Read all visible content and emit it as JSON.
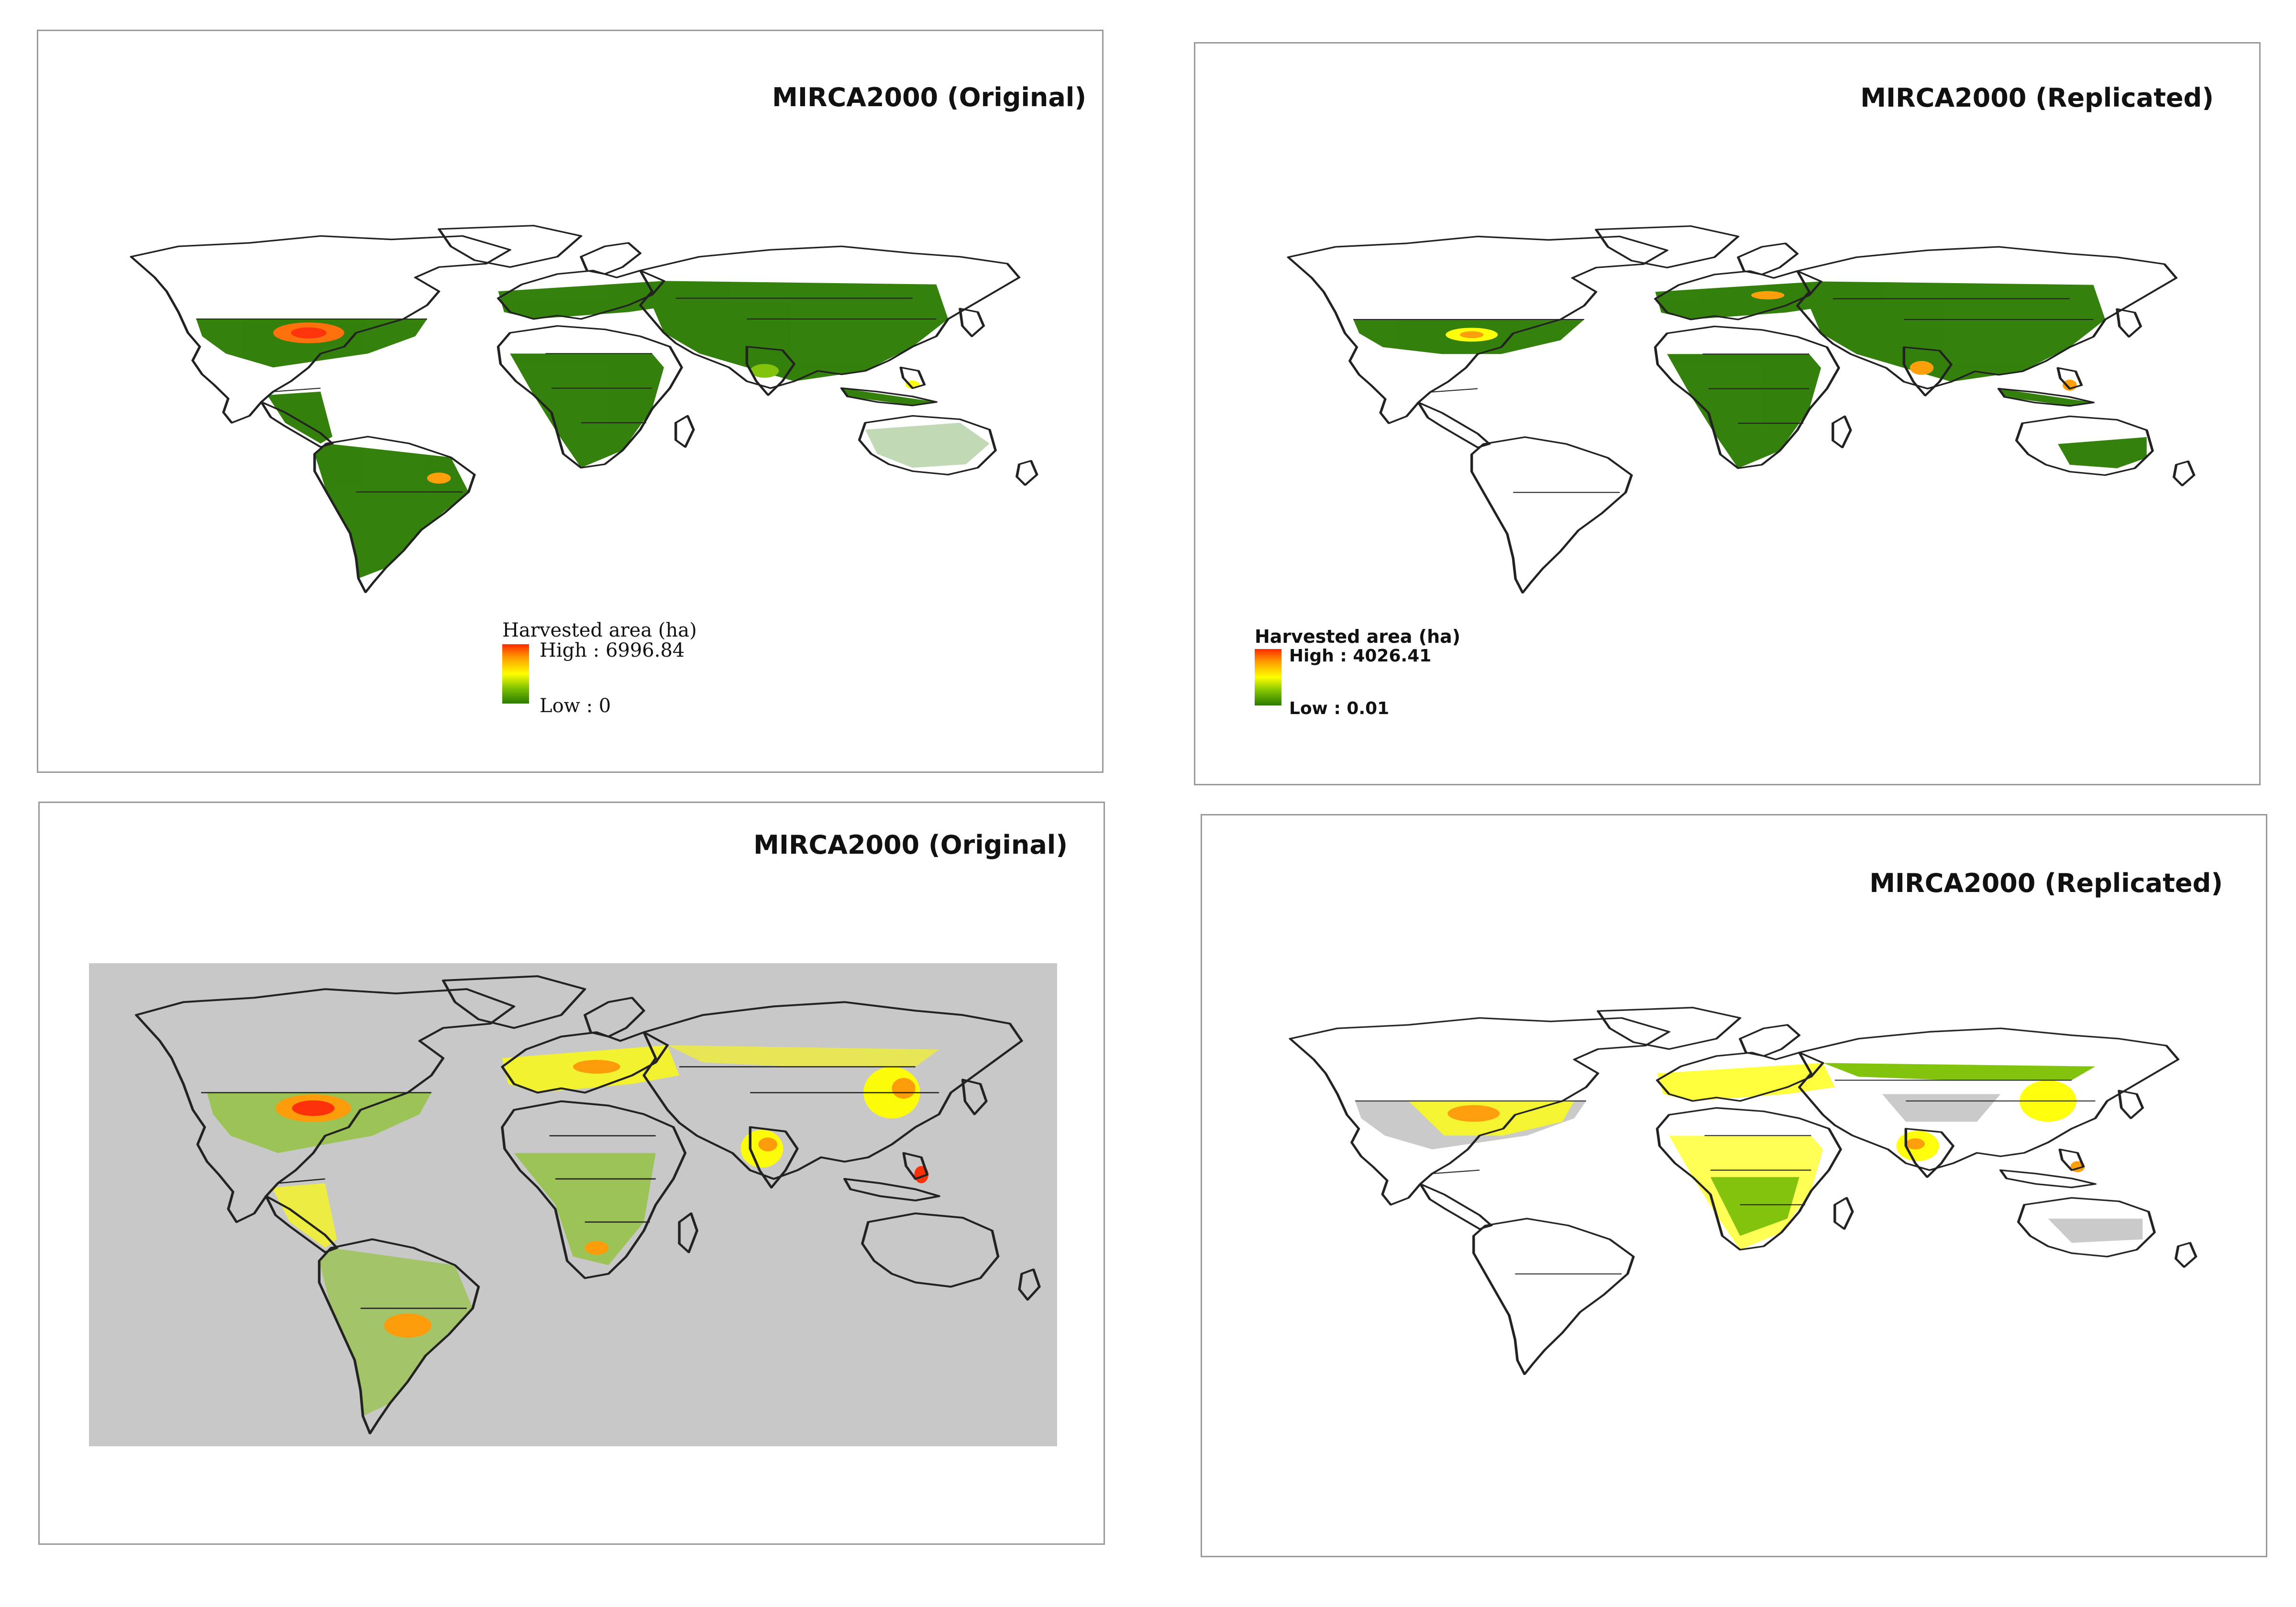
{
  "panels": [
    {
      "title": "MIRCA2000 (Original)",
      "legend": {
        "title": "Harvested area (ha)",
        "high": "High : 6996.84",
        "low": "Low : 0"
      }
    },
    {
      "title": "MIRCA2000 (Replicated)",
      "legend": {
        "title": "Harvested area (ha)",
        "high": "High : 4026.41",
        "low": "Low : 0.01"
      }
    },
    {
      "title": "MIRCA2000 (Original)"
    },
    {
      "title": "MIRCA2000 (Replicated)"
    }
  ],
  "colors": {
    "low": "#2a7a00",
    "mid_low": "#7cc000",
    "mid": "#ffff00",
    "mid_high": "#ff9a00",
    "high": "#ff2a00",
    "no_data_grey": "#c8c8c8",
    "outline": "#222222"
  }
}
